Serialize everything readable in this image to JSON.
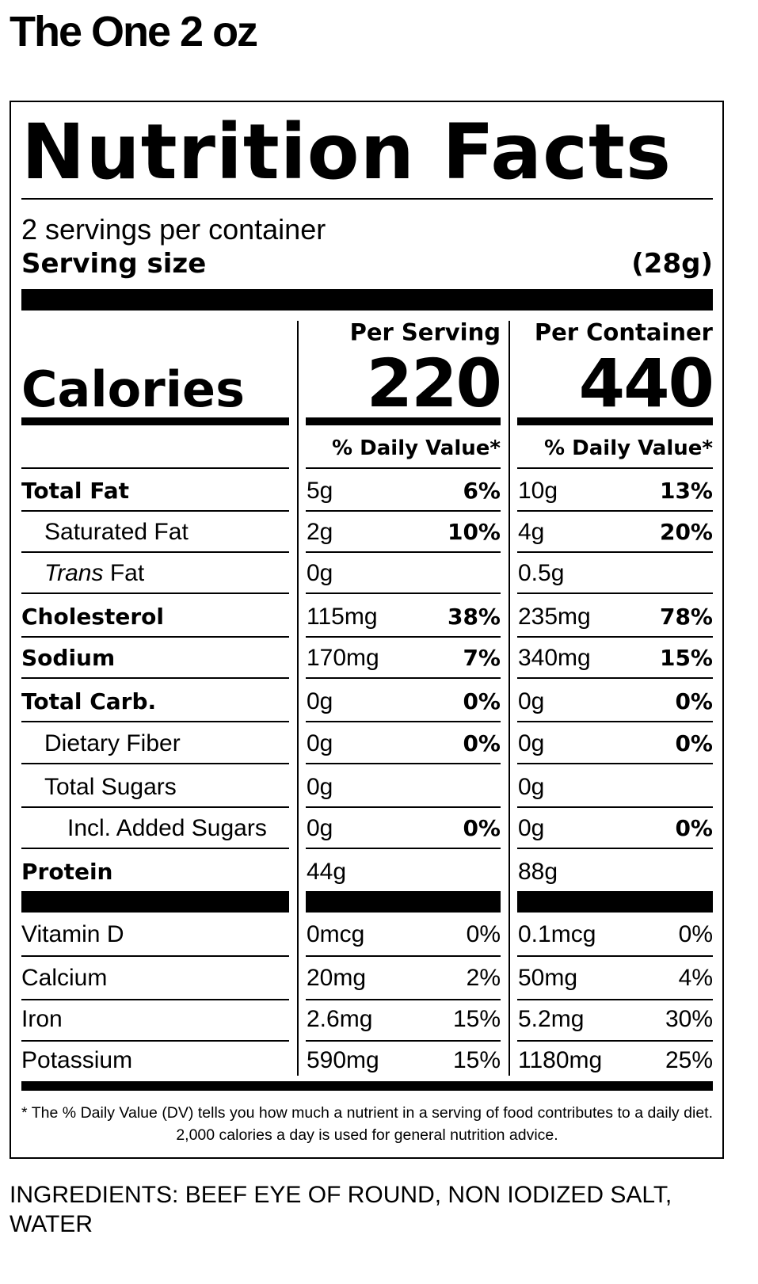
{
  "title": "The One 2 oz",
  "label": {
    "heading": "Nutrition Facts",
    "servings": "2 servings per container",
    "serving_size_label": "Serving size",
    "serving_size": "(28g)",
    "per_serving": "Per Serving",
    "per_container": "Per Container",
    "calories_label": "Calories",
    "calories_serving": 220,
    "calories_container": 440,
    "dv_header": "% Daily Value*",
    "rows": [
      {
        "name": "Total Fat",
        "indent": 0,
        "bold": true,
        "serving": "5g",
        "serving_dv": "6%",
        "container": "10g",
        "container_dv": "13%"
      },
      {
        "name": "Saturated Fat",
        "indent": 1,
        "bold": false,
        "serving": "2g",
        "serving_dv": "10%",
        "container": "4g",
        "container_dv": "20%"
      },
      {
        "name_italic": "Trans",
        "name": "Fat",
        "indent": 1,
        "bold": false,
        "serving": "0g",
        "serving_dv": null,
        "container": "0.5g",
        "container_dv": null
      },
      {
        "name": "Cholesterol",
        "indent": 0,
        "bold": true,
        "serving": "115mg",
        "serving_dv": "38%",
        "container": "235mg",
        "container_dv": "78%"
      },
      {
        "name": "Sodium",
        "indent": 0,
        "bold": true,
        "serving": "170mg",
        "serving_dv": "7%",
        "container": "340mg",
        "container_dv": "15%"
      },
      {
        "name": "Total Carb.",
        "indent": 0,
        "bold": true,
        "serving": "0g",
        "serving_dv": "0%",
        "container": "0g",
        "container_dv": "0%"
      },
      {
        "name": "Dietary Fiber",
        "indent": 1,
        "bold": false,
        "serving": "0g",
        "serving_dv": "0%",
        "container": "0g",
        "container_dv": "0%"
      },
      {
        "name": "Total Sugars",
        "indent": 1,
        "bold": false,
        "serving": "0g",
        "serving_dv": null,
        "container": "0g",
        "container_dv": null
      },
      {
        "name": "Incl. Added Sugars",
        "indent": 2,
        "bold": false,
        "serving": "0g",
        "serving_dv": "0%",
        "container": "0g",
        "container_dv": "0%"
      },
      {
        "name": "Protein",
        "indent": 0,
        "bold": true,
        "serving": "44g",
        "serving_dv": null,
        "container": "88g",
        "container_dv": null
      }
    ],
    "vitamins": [
      {
        "name": "Vitamin D",
        "serving": "0mcg",
        "serving_dv": "0%",
        "container": "0.1mcg",
        "container_dv": "0%"
      },
      {
        "name": "Calcium",
        "serving": "20mg",
        "serving_dv": "2%",
        "container": "50mg",
        "container_dv": "4%"
      },
      {
        "name": "Iron",
        "serving": "2.6mg",
        "serving_dv": "15%",
        "container": "5.2mg",
        "container_dv": "30%"
      },
      {
        "name": "Potassium",
        "serving": "590mg",
        "serving_dv": "15%",
        "container": "1180mg",
        "container_dv": "25%"
      }
    ],
    "footnote": "* The % Daily Value (DV) tells you how much a nutrient in a serving of food contributes to a daily diet. 2,000 calories a day is used for general nutrition advice."
  },
  "ingredients": "INGREDIENTS: BEEF EYE OF ROUND, NON IODIZED SALT, WATER"
}
